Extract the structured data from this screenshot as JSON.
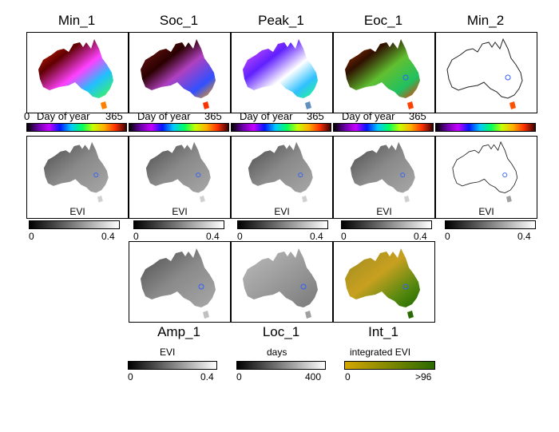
{
  "row1_titles": [
    "Min_1",
    "Soc_1",
    "Peak_1",
    "Eoc_1",
    "Min_2"
  ],
  "doy": {
    "min": "0",
    "label": "Day of year",
    "max": "365"
  },
  "evi_label": "EVI",
  "evi_range": {
    "min": "0",
    "max": "0.4"
  },
  "row3_titles": [
    "Amp_1",
    "Loc_1",
    "Int_1"
  ],
  "amp": {
    "label": "EVI",
    "min": "0",
    "max": "0.4"
  },
  "loc": {
    "label": "days",
    "min": "0",
    "max": "400"
  },
  "int": {
    "label": "integrated EVI",
    "min": "0",
    "max": ">96"
  },
  "colors": {
    "rainbow": [
      "#000000",
      "#6a00a8",
      "#c800ff",
      "#0018ff",
      "#00c8ff",
      "#00ff60",
      "#c8ff00",
      "#ffb000",
      "#ff3000",
      "#3a0000"
    ],
    "grey": [
      "#000000",
      "#ffffff"
    ],
    "integrated": [
      "#d4a600",
      "#2a6a00"
    ]
  }
}
